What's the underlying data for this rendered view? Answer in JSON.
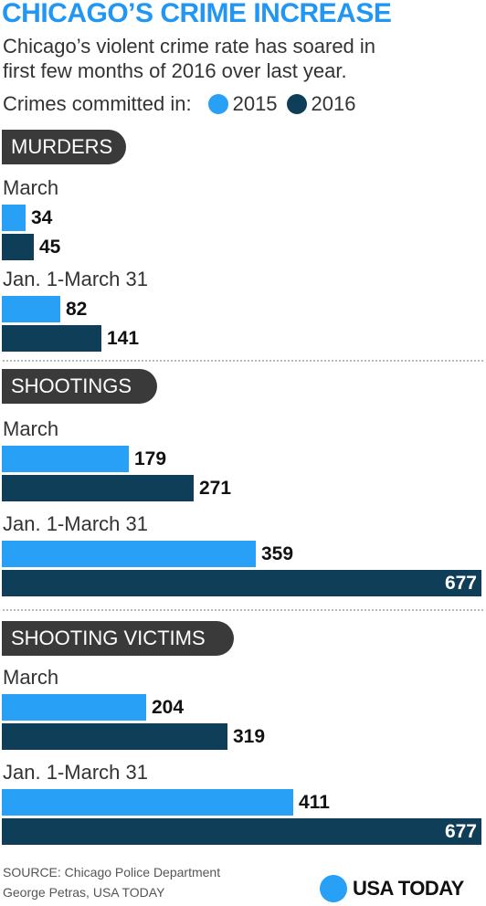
{
  "title": "CHICAGO’S CRIME INCREASE",
  "subtitle": [
    "Chicago’s violent crime rate has soared in",
    "first few months of 2016 over last year."
  ],
  "colors": {
    "title": "#2196f3",
    "series_2015": "#27a0f5",
    "series_2016": "#0f3e58",
    "pill": "#3a3a3a",
    "logo": "#27a0f5"
  },
  "chart_data": {
    "type": "bar",
    "orientation": "horizontal",
    "legend": {
      "label": "Crimes committed in:",
      "position": "top",
      "entries": [
        "2015",
        "2016"
      ]
    },
    "grid": false,
    "xlim": [
      0,
      677
    ],
    "panels": [
      {
        "title": "MURDERS",
        "groups": [
          {
            "label": "March",
            "series": [
              {
                "name": "2015",
                "value": 34
              },
              {
                "name": "2016",
                "value": 45
              }
            ]
          },
          {
            "label": "Jan. 1-March 31",
            "series": [
              {
                "name": "2015",
                "value": 82
              },
              {
                "name": "2016",
                "value": 141
              }
            ]
          }
        ]
      },
      {
        "title": "SHOOTINGS",
        "groups": [
          {
            "label": "March",
            "series": [
              {
                "name": "2015",
                "value": 179
              },
              {
                "name": "2016",
                "value": 271
              }
            ]
          },
          {
            "label": "Jan. 1-March 31",
            "series": [
              {
                "name": "2015",
                "value": 359
              },
              {
                "name": "2016",
                "value": 677
              }
            ]
          }
        ]
      },
      {
        "title": "SHOOTING VICTIMS",
        "groups": [
          {
            "label": "March",
            "series": [
              {
                "name": "2015",
                "value": 204
              },
              {
                "name": "2016",
                "value": 319
              }
            ]
          },
          {
            "label": "Jan. 1-March 31",
            "series": [
              {
                "name": "2015",
                "value": 411
              },
              {
                "name": "2016",
                "value": 677
              }
            ]
          }
        ]
      }
    ]
  },
  "footer": {
    "source": "SOURCE:  Chicago Police Department",
    "credit": "George Petras, USA TODAY"
  },
  "logo": {
    "text": "USA TODAY",
    "icon": "usatoday-dot-icon"
  }
}
